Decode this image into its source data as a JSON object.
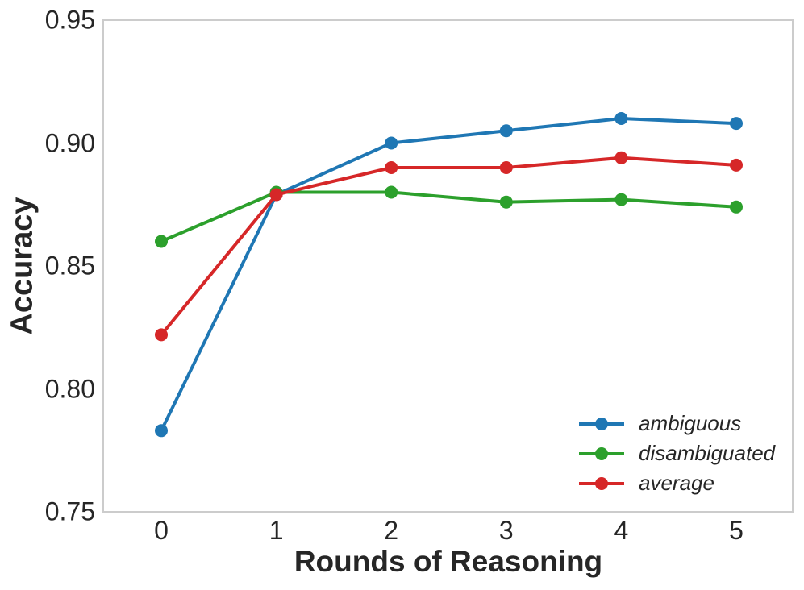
{
  "chart_data": {
    "type": "line",
    "title": "",
    "xlabel": "Rounds of Reasoning",
    "ylabel": "Accuracy",
    "x": [
      0,
      1,
      2,
      3,
      4,
      5
    ],
    "xtick_labels": [
      "0",
      "1",
      "2",
      "3",
      "4",
      "5"
    ],
    "ytick_values": [
      0.95,
      0.9,
      0.85,
      0.8,
      0.75
    ],
    "ytick_labels": [
      "0.95",
      "0.90",
      "0.85",
      "0.80",
      "0.75"
    ],
    "ylim": [
      0.75,
      0.95
    ],
    "grid": false,
    "legend_position": "lower right",
    "series": [
      {
        "name": "ambiguous",
        "color": "#1f77b4",
        "values": [
          0.783,
          0.879,
          0.9,
          0.905,
          0.91,
          0.908
        ]
      },
      {
        "name": "disambiguated",
        "color": "#2ca02c",
        "values": [
          0.86,
          0.88,
          0.88,
          0.876,
          0.877,
          0.874
        ]
      },
      {
        "name": "average",
        "color": "#d62728",
        "values": [
          0.822,
          0.879,
          0.89,
          0.89,
          0.894,
          0.891
        ]
      }
    ]
  },
  "colors": {
    "spine": "#cccccc",
    "text": "#262626",
    "background": "#ffffff"
  }
}
